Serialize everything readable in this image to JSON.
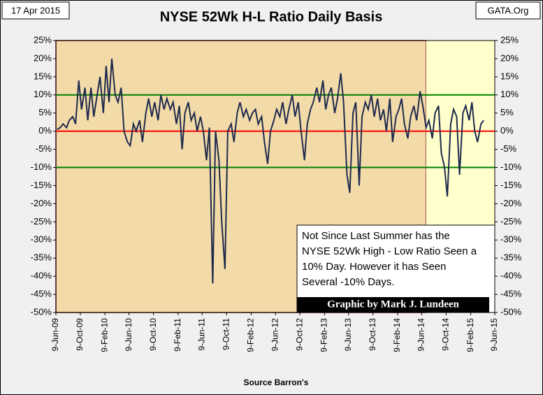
{
  "chart_data": {
    "type": "line",
    "title": "NYSE 52Wk H-L Ratio Daily Basis",
    "date_label": "17 Apr 2015",
    "source_site": "GATA.Org",
    "x_label": "Source Barron's",
    "annotation": [
      "Not Since Last Summer  has the",
      "NYSE 52Wk High - Low Ratio Seen a",
      "10% Day.  However it has Seen",
      "Several -10% Days."
    ],
    "credit": "Graphic by Mark J. Lundeen",
    "xlim": [
      "2009-06-09",
      "2015-06-09"
    ],
    "xticks": [
      {
        "value": "2009-06-09",
        "label": "9-Jun-09"
      },
      {
        "value": "2009-10-09",
        "label": "9-Oct-09"
      },
      {
        "value": "2010-02-09",
        "label": "9-Feb-10"
      },
      {
        "value": "2010-06-09",
        "label": "9-Jun-10"
      },
      {
        "value": "2010-10-09",
        "label": "9-Oct-10"
      },
      {
        "value": "2011-02-09",
        "label": "9-Feb-11"
      },
      {
        "value": "2011-06-09",
        "label": "9-Jun-11"
      },
      {
        "value": "2011-10-09",
        "label": "9-Oct-11"
      },
      {
        "value": "2012-02-09",
        "label": "9-Feb-12"
      },
      {
        "value": "2012-06-09",
        "label": "9-Jun-12"
      },
      {
        "value": "2012-10-09",
        "label": "9-Oct-12"
      },
      {
        "value": "2013-02-09",
        "label": "9-Feb-13"
      },
      {
        "value": "2013-06-09",
        "label": "9-Jun-13"
      },
      {
        "value": "2013-10-09",
        "label": "9-Oct-13"
      },
      {
        "value": "2014-02-09",
        "label": "9-Feb-14"
      },
      {
        "value": "2014-06-09",
        "label": "9-Jun-14"
      },
      {
        "value": "2014-10-09",
        "label": "9-Oct-14"
      },
      {
        "value": "2015-02-09",
        "label": "9-Feb-15"
      },
      {
        "value": "2015-06-09",
        "label": "9-Jun-15"
      }
    ],
    "ylim": [
      -50,
      25
    ],
    "yticks": [
      {
        "value": -50,
        "label": "-50%"
      },
      {
        "value": -45,
        "label": "-45%"
      },
      {
        "value": -40,
        "label": "-40%"
      },
      {
        "value": -35,
        "label": "-35%"
      },
      {
        "value": -30,
        "label": "-30%"
      },
      {
        "value": -25,
        "label": "-25%"
      },
      {
        "value": -20,
        "label": "-20%"
      },
      {
        "value": -15,
        "label": "-15%"
      },
      {
        "value": -10,
        "label": "-10%"
      },
      {
        "value": -5,
        "label": "-5%"
      },
      {
        "value": 0,
        "label": "0%"
      },
      {
        "value": 5,
        "label": "5%"
      },
      {
        "value": 10,
        "label": "10%"
      },
      {
        "value": 15,
        "label": "15%"
      },
      {
        "value": 20,
        "label": "20%"
      },
      {
        "value": 25,
        "label": "25%"
      }
    ],
    "reference_lines": [
      {
        "value": 0,
        "color": "#ff0000"
      },
      {
        "value": 10,
        "color": "#008000"
      },
      {
        "value": -10,
        "color": "#008000"
      }
    ],
    "shaded_regions": [
      {
        "from": "2009-06-09",
        "to": "2014-07-01",
        "color": "#f2dba8",
        "border": "#8b1a1a"
      },
      {
        "from": "2014-07-01",
        "to": "2015-06-09",
        "color": "#ffffcc"
      }
    ],
    "x": [
      "2009-06-15",
      "2009-07-01",
      "2009-07-15",
      "2009-08-01",
      "2009-08-15",
      "2009-09-01",
      "2009-09-15",
      "2009-10-01",
      "2009-10-15",
      "2009-11-01",
      "2009-11-15",
      "2009-12-01",
      "2009-12-15",
      "2010-01-01",
      "2010-01-15",
      "2010-02-01",
      "2010-02-15",
      "2010-03-01",
      "2010-03-15",
      "2010-04-01",
      "2010-04-15",
      "2010-05-01",
      "2010-05-15",
      "2010-06-01",
      "2010-06-15",
      "2010-07-01",
      "2010-07-15",
      "2010-08-01",
      "2010-08-15",
      "2010-09-01",
      "2010-09-15",
      "2010-10-01",
      "2010-10-15",
      "2010-11-01",
      "2010-11-15",
      "2010-12-01",
      "2010-12-15",
      "2011-01-01",
      "2011-01-15",
      "2011-02-01",
      "2011-02-15",
      "2011-03-01",
      "2011-03-15",
      "2011-04-01",
      "2011-04-15",
      "2011-05-01",
      "2011-05-15",
      "2011-06-01",
      "2011-06-15",
      "2011-07-01",
      "2011-07-15",
      "2011-08-01",
      "2011-08-15",
      "2011-09-01",
      "2011-09-15",
      "2011-10-01",
      "2011-10-15",
      "2011-11-01",
      "2011-11-15",
      "2011-12-01",
      "2011-12-15",
      "2012-01-01",
      "2012-01-15",
      "2012-02-01",
      "2012-02-15",
      "2012-03-01",
      "2012-03-15",
      "2012-04-01",
      "2012-04-15",
      "2012-05-01",
      "2012-05-15",
      "2012-06-01",
      "2012-06-15",
      "2012-07-01",
      "2012-07-15",
      "2012-08-01",
      "2012-08-15",
      "2012-09-01",
      "2012-09-15",
      "2012-10-01",
      "2012-10-15",
      "2012-11-01",
      "2012-11-15",
      "2012-12-01",
      "2012-12-15",
      "2013-01-01",
      "2013-01-15",
      "2013-02-01",
      "2013-02-15",
      "2013-03-01",
      "2013-03-15",
      "2013-04-01",
      "2013-04-15",
      "2013-05-01",
      "2013-05-15",
      "2013-06-01",
      "2013-06-15",
      "2013-07-01",
      "2013-07-15",
      "2013-08-01",
      "2013-08-15",
      "2013-09-01",
      "2013-09-15",
      "2013-10-01",
      "2013-10-15",
      "2013-11-01",
      "2013-11-15",
      "2013-12-01",
      "2013-12-15",
      "2014-01-01",
      "2014-01-15",
      "2014-02-01",
      "2014-02-15",
      "2014-03-01",
      "2014-03-15",
      "2014-04-01",
      "2014-04-15",
      "2014-05-01",
      "2014-05-15",
      "2014-06-01",
      "2014-06-15",
      "2014-07-01",
      "2014-07-15",
      "2014-08-01",
      "2014-08-15",
      "2014-09-01",
      "2014-09-15",
      "2014-10-01",
      "2014-10-15",
      "2014-11-01",
      "2014-11-15",
      "2014-12-01",
      "2014-12-15",
      "2015-01-01",
      "2015-01-15",
      "2015-02-01",
      "2015-02-15",
      "2015-03-01",
      "2015-03-15",
      "2015-04-01",
      "2015-04-15"
    ],
    "series": [
      {
        "name": "NYSE 52Wk H-L Ratio",
        "color": "#1f2a4d",
        "values": [
          0.5,
          1,
          2,
          1,
          3,
          4,
          2,
          14,
          6,
          12,
          3,
          12,
          4,
          10,
          15,
          5,
          18,
          8,
          20,
          10,
          8,
          12,
          0,
          -3,
          -4,
          2,
          0,
          3,
          -3,
          5,
          9,
          4,
          8,
          3,
          10,
          6,
          9,
          6,
          8,
          2,
          7,
          -5,
          5,
          8,
          3,
          5,
          0,
          4,
          0,
          -8,
          1,
          -42,
          0,
          -8,
          -25,
          -38,
          0,
          2,
          -3,
          5,
          8,
          4,
          6,
          3,
          5,
          6,
          2,
          4,
          -3,
          -9,
          0,
          3,
          6,
          4,
          8,
          2,
          6,
          10,
          4,
          8,
          0,
          -8,
          2,
          6,
          8,
          12,
          8,
          14,
          6,
          10,
          12,
          5,
          9,
          16,
          8,
          -12,
          -17,
          5,
          8,
          -15,
          4,
          8,
          6,
          10,
          4,
          9,
          3,
          6,
          0,
          9,
          -3,
          4,
          6,
          9,
          2,
          -2,
          4,
          7,
          3,
          11,
          7,
          1,
          3,
          -2,
          5,
          7,
          -6,
          -10,
          -18,
          2,
          6,
          4,
          -12,
          5,
          7,
          3,
          8,
          0,
          -3,
          2,
          3
        ]
      }
    ]
  }
}
